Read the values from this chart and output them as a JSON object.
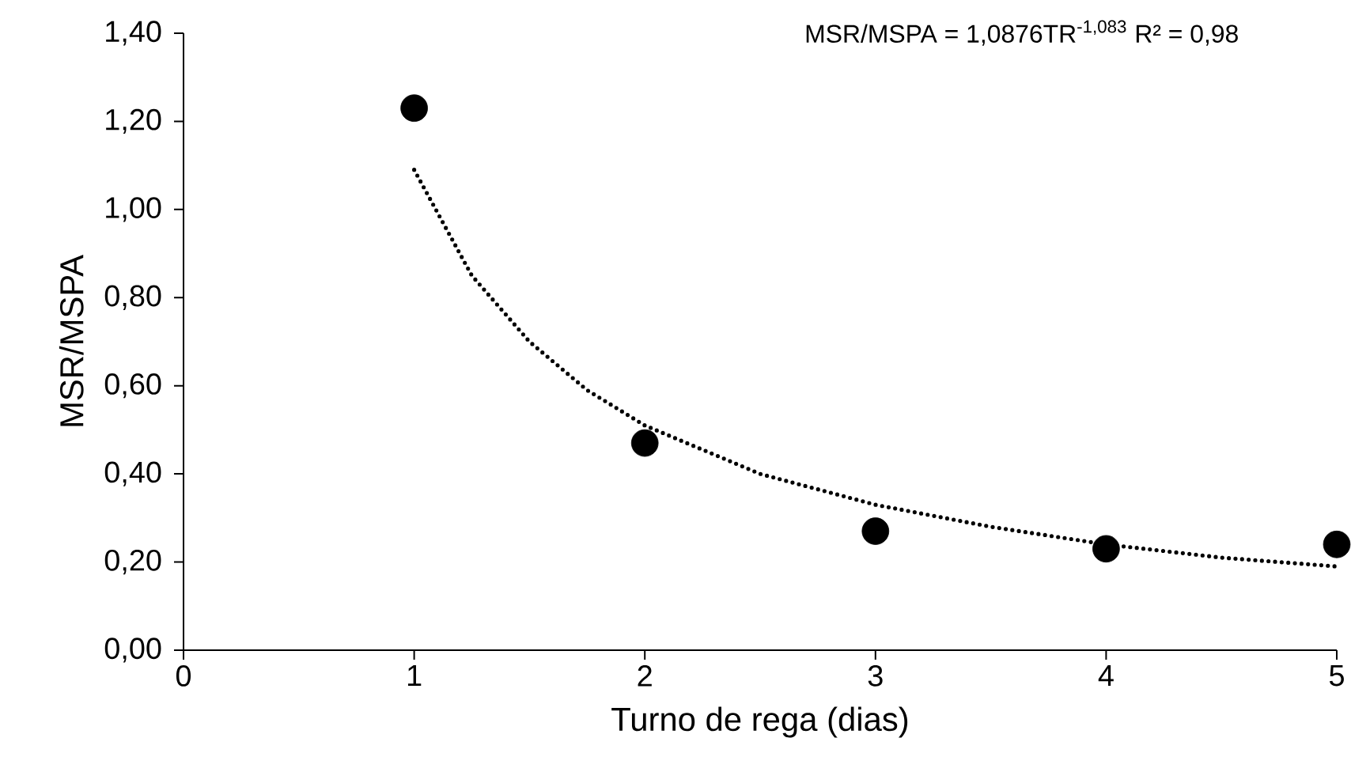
{
  "chart_data": {
    "type": "scatter",
    "xlabel": "Turno de rega (dias)",
    "ylabel": "MSR/MSPA",
    "annotations": [
      "MSR/MSPA = 1,0876TR$^{-1,083}$ R² = 0,98"
    ],
    "xlim": [
      0,
      5
    ],
    "xticks": [
      0,
      1,
      2,
      3,
      4,
      5
    ],
    "ylim": [
      0,
      1.4
    ],
    "yticks": [
      {
        "value": 0,
        "label": "0,00"
      },
      {
        "value": 0.2,
        "label": "0,20"
      },
      {
        "value": 0.4,
        "label": "0,40"
      },
      {
        "value": 0.6,
        "label": "0,60"
      },
      {
        "value": 0.8,
        "label": "0,80"
      },
      {
        "value": 1.0,
        "label": "1,00"
      },
      {
        "value": 1.2,
        "label": "1,20"
      },
      {
        "value": 1.4,
        "label": "1,40"
      }
    ],
    "grid": false,
    "legend": false,
    "series": [
      {
        "marker": "circle",
        "color": "#000000",
        "x": [
          1,
          2,
          3,
          4,
          5
        ],
        "values": [
          1.23,
          0.47,
          0.27,
          0.23,
          0.24
        ]
      },
      {
        "type": "line",
        "marker": "none",
        "line_style": "dotted",
        "color": "#000000",
        "x": [
          1,
          1.25,
          1.5,
          1.75,
          2,
          2.5,
          3,
          3.5,
          4,
          4.5,
          5
        ],
        "values": [
          1.09,
          0.85,
          0.7,
          0.59,
          0.51,
          0.4,
          0.33,
          0.28,
          0.24,
          0.21,
          0.19
        ]
      }
    ]
  }
}
